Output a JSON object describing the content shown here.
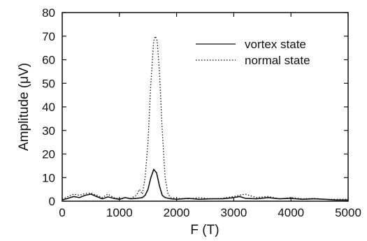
{
  "chart_data": {
    "type": "line",
    "xlabel": "F (T)",
    "ylabel": "Amplitude (μV)",
    "xlim": [
      0,
      5000
    ],
    "ylim": [
      0,
      80
    ],
    "xticks": [
      0,
      1000,
      2000,
      3000,
      4000,
      5000
    ],
    "yticks": [
      0,
      10,
      20,
      30,
      40,
      50,
      60,
      70,
      80
    ],
    "grid": false,
    "legend": "top-right",
    "series": [
      {
        "name": "vortex state",
        "line_style": "solid",
        "x": [
          0,
          100,
          200,
          300,
          400,
          500,
          600,
          700,
          800,
          900,
          1000,
          1100,
          1200,
          1300,
          1400,
          1450,
          1500,
          1550,
          1600,
          1650,
          1700,
          1750,
          1800,
          1900,
          2000,
          2200,
          2400,
          2600,
          2800,
          3000,
          3100,
          3200,
          3400,
          3600,
          3800,
          4000,
          4200,
          4400,
          4600,
          4800,
          5000
        ],
        "y": [
          0.5,
          1.2,
          2.0,
          1.5,
          2.5,
          3.0,
          2.0,
          1.0,
          1.8,
          1.2,
          0.8,
          1.5,
          1.0,
          1.2,
          1.5,
          2.5,
          5.0,
          10.0,
          13.5,
          12.0,
          6.5,
          2.5,
          1.5,
          1.0,
          0.8,
          1.2,
          0.8,
          1.0,
          1.0,
          1.5,
          2.0,
          1.2,
          1.0,
          1.5,
          1.0,
          1.2,
          0.8,
          1.0,
          0.8,
          0.5,
          0.5
        ]
      },
      {
        "name": "normal state",
        "line_style": "dotted",
        "x": [
          0,
          100,
          200,
          300,
          400,
          500,
          600,
          700,
          800,
          900,
          1000,
          1100,
          1200,
          1300,
          1350,
          1400,
          1450,
          1500,
          1550,
          1600,
          1630,
          1660,
          1700,
          1750,
          1800,
          1850,
          1900,
          2000,
          2200,
          2400,
          2600,
          2800,
          3000,
          3100,
          3200,
          3400,
          3600,
          3800,
          4000,
          4200,
          4400,
          4600,
          4800,
          5000
        ],
        "y": [
          0.8,
          2.0,
          3.0,
          2.5,
          3.2,
          3.5,
          2.5,
          1.5,
          3.0,
          1.5,
          1.0,
          1.5,
          1.2,
          2.5,
          5.0,
          3.0,
          10.0,
          25.0,
          50.0,
          68.0,
          70.0,
          68.0,
          55.0,
          30.0,
          10.0,
          3.0,
          1.5,
          1.2,
          1.0,
          1.5,
          1.0,
          1.2,
          2.0,
          2.5,
          3.0,
          1.5,
          2.0,
          1.0,
          1.5,
          1.0,
          1.2,
          0.8,
          0.8,
          0.8
        ]
      }
    ]
  }
}
